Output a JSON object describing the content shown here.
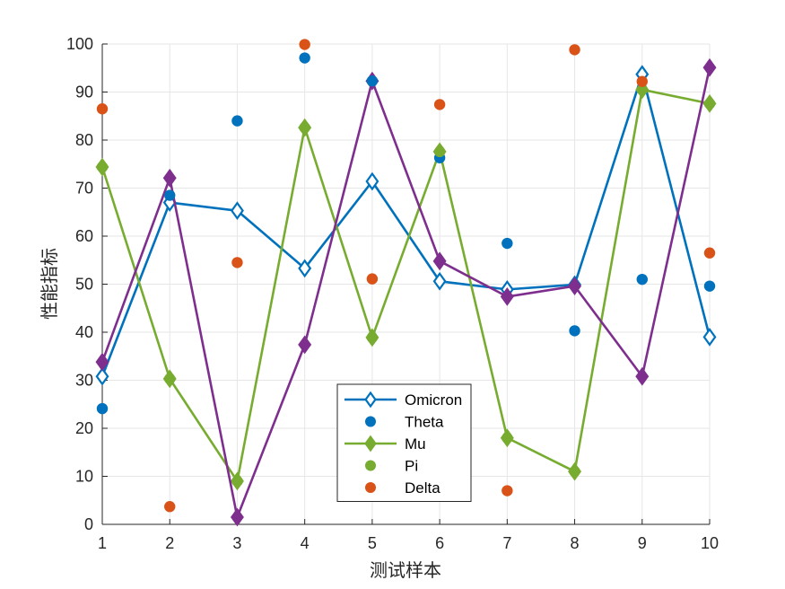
{
  "chart_data": {
    "type": "line",
    "title": "",
    "xlabel": "测试样本",
    "ylabel": "性能指标",
    "x": [
      1,
      2,
      3,
      4,
      5,
      6,
      7,
      8,
      9,
      10
    ],
    "xlim": [
      1,
      10
    ],
    "ylim": [
      0,
      100
    ],
    "xticks": [
      "1",
      "2",
      "3",
      "4",
      "5",
      "6",
      "7",
      "8",
      "9",
      "10"
    ],
    "yticks": [
      "0",
      "10",
      "20",
      "30",
      "40",
      "50",
      "60",
      "70",
      "80",
      "90",
      "100"
    ],
    "grid": true,
    "legend_position": "lower-center",
    "series": [
      {
        "name": "Omicron",
        "style": "line-open-diamond",
        "color": "#0072BD",
        "values": [
          30.8,
          67.0,
          65.3,
          53.3,
          71.4,
          50.6,
          48.9,
          49.9,
          93.7,
          39.0
        ]
      },
      {
        "name": "Theta",
        "style": "dots",
        "color": "#0072BD",
        "values": [
          24.1,
          68.5,
          84.0,
          97.1,
          92.3,
          76.3,
          58.5,
          40.3,
          51.0,
          49.6
        ]
      },
      {
        "name": "Mu",
        "style": "line-filled-diamond",
        "color": "#77AC30",
        "values": [
          74.4,
          30.3,
          9.0,
          82.6,
          38.9,
          77.6,
          18.0,
          11.0,
          90.5,
          87.6
        ]
      },
      {
        "name": "Pi",
        "style": "dots",
        "color": "#77AC30",
        "values": [
          74.4,
          30.3,
          9.0,
          82.6,
          38.9,
          77.6,
          18.0,
          11.0,
          90.5,
          87.6
        ]
      },
      {
        "name": "Delta",
        "style": "dots",
        "color": "#D95319",
        "values": [
          86.5,
          3.7,
          54.5,
          99.9,
          51.1,
          87.4,
          7.0,
          98.8,
          92.2,
          56.5
        ]
      },
      {
        "name": "",
        "style": "line-filled-diamond",
        "color": "#7E2F8E",
        "values": [
          33.8,
          72.1,
          1.5,
          37.4,
          92.3,
          54.8,
          47.4,
          49.6,
          30.8,
          95.1
        ]
      }
    ]
  },
  "colors": {
    "axis": "#262626",
    "grid": "#e6e6e6",
    "background": "#ffffff"
  }
}
